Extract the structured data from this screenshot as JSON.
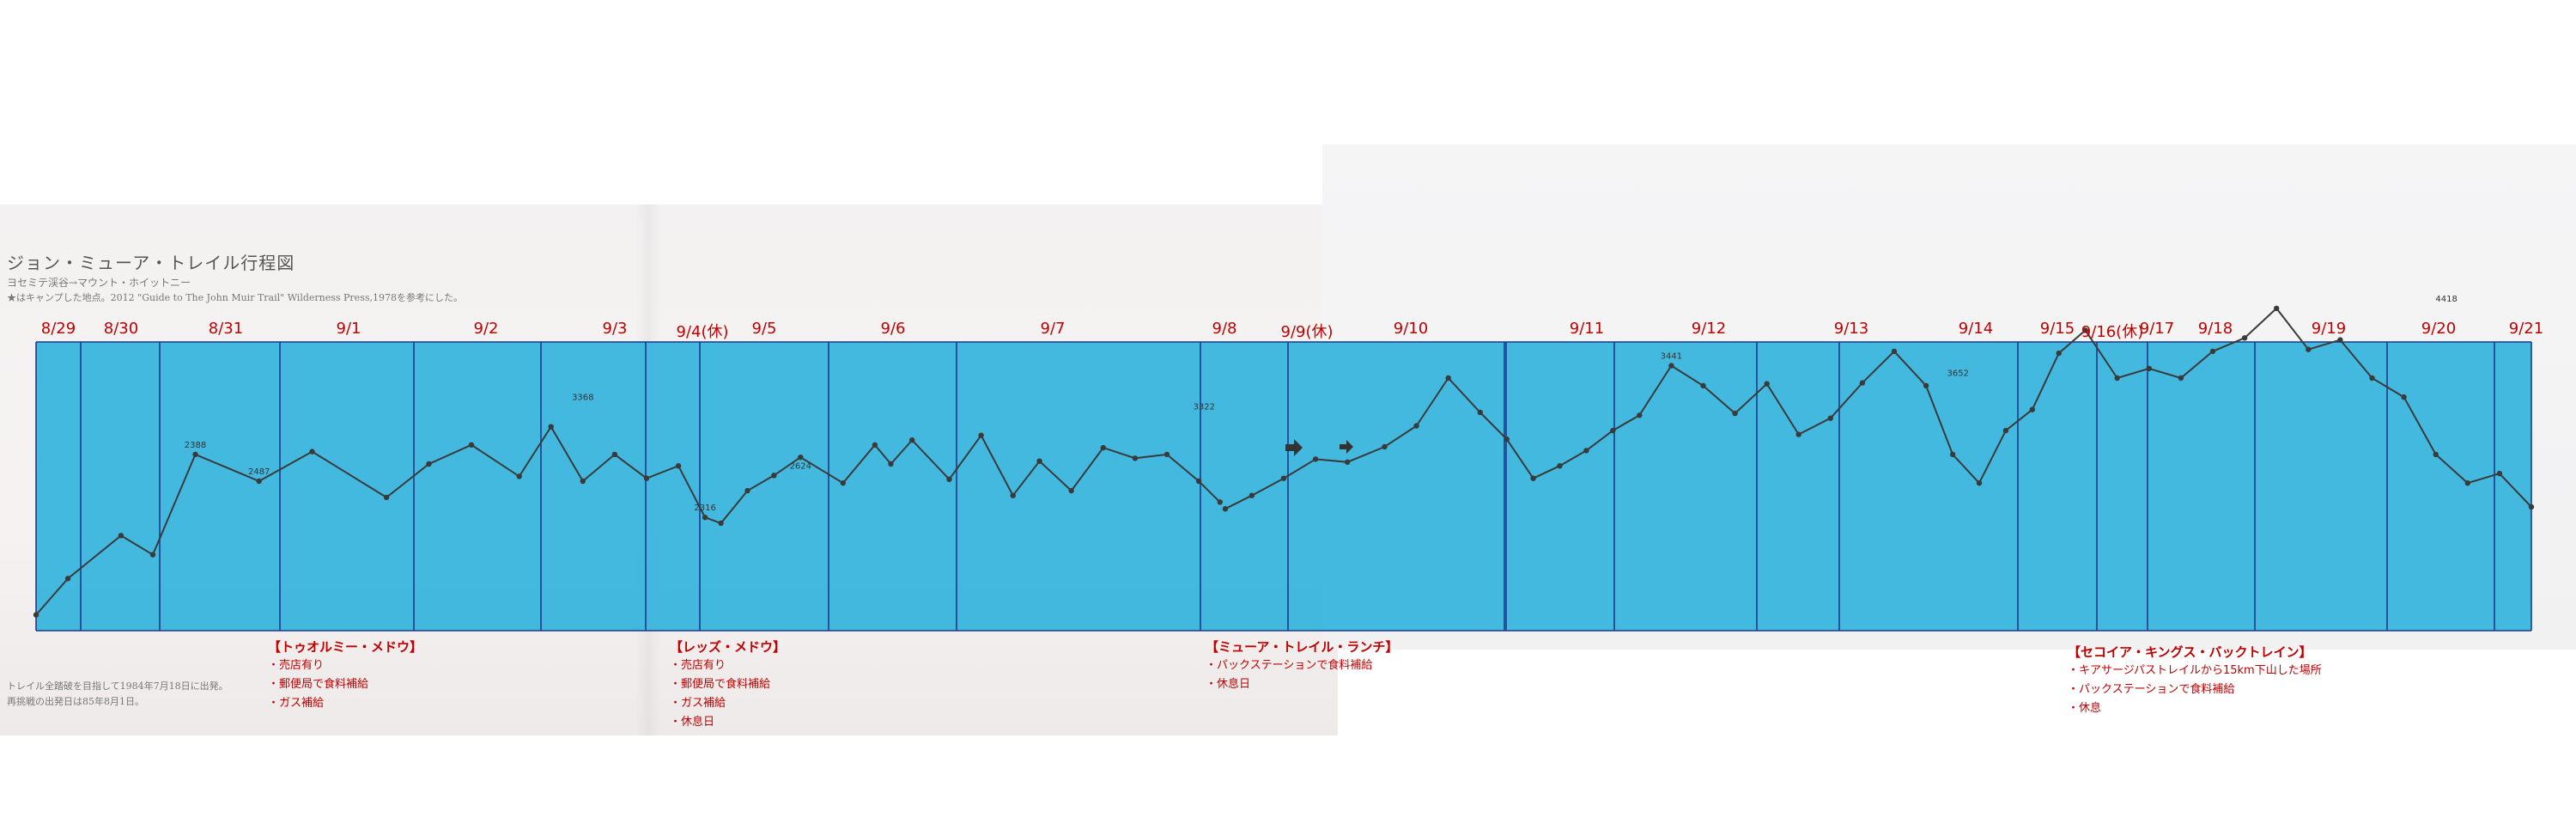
{
  "document": {
    "title": "ジョン・ミューア・トレイル行程図",
    "subtitle": "ヨセミテ渓谷→マウント・ホイットニー",
    "reference_note": "★はキャンプした地点。2012 \"Guide to The John Muir Trail\" Wilderness Press,1978を参考にした。",
    "start_note_line1": "トレイル全踏破を目指して1984年7月18日に出発。",
    "start_note_line2": "再挑戦の出発日は85年8月1日。"
  },
  "days": [
    "8/29",
    "8/30",
    "8/31",
    "9/1",
    "9/2",
    "9/3",
    "9/4(休)",
    "9/5",
    "9/6",
    "9/7",
    "9/8",
    "9/9(休)",
    "9/10",
    "9/11",
    "9/12",
    "9/13",
    "9/14",
    "9/15",
    "9/16(休)",
    "9/17",
    "9/18",
    "9/19",
    "9/20",
    "9/21"
  ],
  "resupply_notes": [
    {
      "title": "【トゥオルミー・メドウ】",
      "items": [
        "・売店有り",
        "・郵便局で食料補給",
        "・ガス補給"
      ]
    },
    {
      "title": "【レッズ・メドウ】",
      "items": [
        "・売店有り",
        "・郵便局で食料補給",
        "・ガス補給",
        "・休息日"
      ]
    },
    {
      "title": "【ミューア・トレイル・ランチ】",
      "items": [
        "・パックステーションで食料補給",
        "・休息日"
      ]
    },
    {
      "title": "【セコイア・キングス・バックトレイン】",
      "items": [
        "・キアサージパストレイルから15km下山した場所",
        "・パックステーションで食料補給",
        "・休息"
      ]
    }
  ],
  "colors": {
    "overlay": "#2ab0dc",
    "day_divider": "#1a3a8c",
    "label_red": "#c00000",
    "profile_line": "#3a3a3a"
  },
  "chart_data": {
    "type": "line",
    "title": "",
    "xlabel": "",
    "ylabel": "",
    "grid": false,
    "legend": "none",
    "profile_left": {
      "x": [
        0.0,
        0.3,
        0.8,
        1.1,
        1.5,
        2.1,
        2.6,
        3.3,
        3.7,
        4.1,
        4.55,
        4.85,
        5.15,
        5.45,
        5.75,
        6.05,
        6.3,
        6.45,
        6.7,
        6.95,
        7.2,
        7.6,
        7.9,
        8.05,
        8.25,
        8.6,
        8.9,
        9.2,
        9.45,
        9.75,
        10.05,
        10.35,
        10.65,
        10.95,
        11.15
      ],
      "y": [
        1220,
        1600,
        2050,
        1850,
        2900,
        2620,
        2930,
        2450,
        2800,
        3000,
        2670,
        3190,
        2620,
        2900,
        2650,
        2780,
        2240,
        2180,
        2520,
        2680,
        2870,
        2600,
        3000,
        2800,
        3050,
        2640,
        3100,
        2470,
        2830,
        2520,
        2970,
        2860,
        2900,
        2620,
        2400
      ]
    },
    "profile_right": {
      "x": [
        11.2,
        11.45,
        11.75,
        12.05,
        12.35,
        12.7,
        13.0,
        13.3,
        13.6,
        13.85,
        14.1,
        14.35,
        14.6,
        14.85,
        15.1,
        15.4,
        15.7,
        16.0,
        16.3,
        16.6,
        16.9,
        17.2,
        17.5,
        17.8,
        18.05,
        18.3,
        18.55,
        18.8,
        19.05,
        19.3,
        19.6,
        19.9,
        20.2,
        20.5,
        20.8,
        21.1,
        21.4,
        21.7,
        22.0,
        22.3,
        22.6,
        22.9,
        23.2,
        23.5
      ],
      "y": [
        2330,
        2470,
        2650,
        2850,
        2820,
        2980,
        3200,
        3700,
        3340,
        3060,
        2650,
        2780,
        2940,
        3150,
        3310,
        3830,
        3620,
        3330,
        3640,
        3110,
        3280,
        3650,
        3980,
        3620,
        2900,
        2600,
        3150,
        3370,
        3960,
        4200,
        3700,
        3800,
        3700,
        3980,
        4120,
        4430,
        4000,
        4100,
        3700,
        3500,
        2900,
        2600,
        2700,
        2350
      ]
    },
    "marked_elevations": [
      {
        "label": "2388",
        "x": 1.5,
        "y": 2900
      },
      {
        "label": "2487",
        "x": 2.1,
        "y": 2620
      },
      {
        "label": "3368",
        "x": 5.15,
        "y": 3400
      },
      {
        "label": "2316",
        "x": 6.3,
        "y": 2240
      },
      {
        "label": "2624",
        "x": 7.2,
        "y": 2680
      },
      {
        "label": "3322",
        "x": 11.0,
        "y": 3300
      },
      {
        "label": "3441",
        "x": 15.4,
        "y": 3830
      },
      {
        "label": "3652",
        "x": 18.1,
        "y": 3652
      },
      {
        "label": "4418",
        "x": 22.7,
        "y": 4430
      }
    ],
    "ylim": [
      1000,
      4600
    ]
  }
}
